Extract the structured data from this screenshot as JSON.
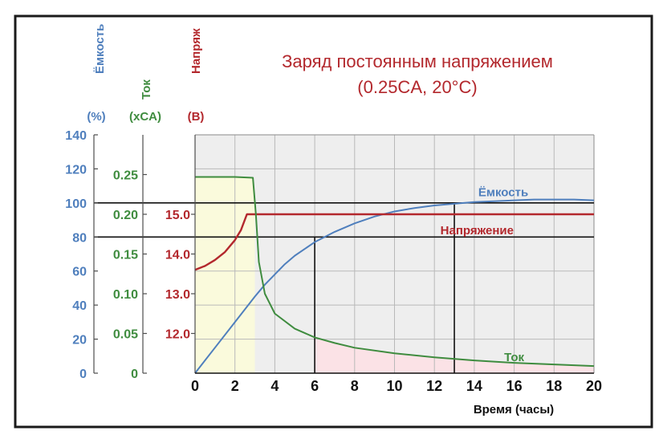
{
  "title": {
    "line1": "Заряд постоянным напряжением",
    "line2": "(0.25CA, 20°C)",
    "color": "#b3282d"
  },
  "axes_titles": {
    "capacity": {
      "name": "Ёмкость",
      "unit": "(%)",
      "color": "#4f7fbd"
    },
    "current": {
      "name": "Ток",
      "unit": "(xCA)",
      "color": "#3f8c3f"
    },
    "voltage": {
      "name": "Напряж",
      "unit": "(В)",
      "color": "#b3282d"
    }
  },
  "chart_data": {
    "type": "line",
    "xlabel": "Время (часы)",
    "xlim": [
      0,
      20
    ],
    "x_ticks": [
      "0",
      "2",
      "4",
      "6",
      "8",
      "10",
      "12",
      "14",
      "16",
      "18",
      "20"
    ],
    "y_axes": [
      {
        "name": "Ёмкость",
        "unit": "(%)",
        "lim": [
          0,
          140
        ],
        "ticks": [
          "0",
          "20",
          "40",
          "60",
          "80",
          "100",
          "120",
          "140"
        ]
      },
      {
        "name": "Ток",
        "unit": "(xCA)",
        "lim": [
          0,
          0.3
        ],
        "ticks": [
          "0",
          "0.05",
          "0.10",
          "0.15",
          "0.20",
          "0.25"
        ]
      },
      {
        "name": "Напряж",
        "unit": "(В)",
        "lim": [
          11,
          17
        ],
        "ticks": [
          "12.0",
          "13.0",
          "14.0",
          "15.0"
        ]
      }
    ],
    "grid": true,
    "series": [
      {
        "name": "Ёмкость",
        "color": "#4f7fbd",
        "axis": "capacity",
        "x": [
          0,
          1,
          2,
          3,
          3.5,
          4,
          4.5,
          5,
          6,
          7,
          8,
          9,
          10,
          11,
          12,
          13,
          14,
          15,
          16,
          17,
          18,
          19,
          20
        ],
        "y": [
          0,
          15,
          30,
          45,
          52,
          58,
          64,
          69,
          77,
          83,
          88,
          92,
          95,
          97,
          98.5,
          99.5,
          100.5,
          101,
          101.5,
          102,
          102,
          102,
          101.5
        ]
      },
      {
        "name": "Напряжение",
        "color": "#b3282d",
        "axis": "voltage",
        "x": [
          0,
          0.5,
          1,
          1.5,
          2,
          2.3,
          2.6,
          3,
          6,
          10,
          15,
          20
        ],
        "y": [
          13.6,
          13.7,
          13.85,
          14.05,
          14.35,
          14.6,
          15.0,
          15.0,
          15.0,
          15.0,
          15.0,
          15.0
        ]
      },
      {
        "name": "Ток",
        "color": "#3f8c3f",
        "axis": "current",
        "x": [
          0,
          1,
          2,
          2.9,
          3.05,
          3.2,
          3.5,
          4,
          5,
          6,
          7,
          8,
          10,
          12,
          14,
          16,
          18,
          20
        ],
        "y": [
          0.247,
          0.247,
          0.247,
          0.246,
          0.2,
          0.14,
          0.1,
          0.075,
          0.056,
          0.045,
          0.038,
          0.032,
          0.025,
          0.02,
          0.016,
          0.013,
          0.011,
          0.009
        ]
      }
    ],
    "reference_lines": [
      {
        "axis": "capacity",
        "value": 80
      },
      {
        "axis": "capacity",
        "value": 100
      },
      {
        "axis": "x",
        "value": 6
      },
      {
        "axis": "x",
        "value": 13
      }
    ],
    "shaded_regions": [
      {
        "x": [
          0,
          3
        ],
        "color": "#fafadc",
        "under": "Ток",
        "fill_to": "top-constant"
      },
      {
        "x": [
          6,
          20
        ],
        "color": "#fbe2e6",
        "under": "Ток"
      }
    ],
    "series_labels": [
      {
        "text": "Ёмкость",
        "x": 14.2,
        "capacity": 104,
        "color": "#4f7fbd"
      },
      {
        "text": "Напряжение",
        "x": 12.3,
        "capacity": 81.5,
        "color": "#b3282d"
      },
      {
        "text": "Ток",
        "x": 15.5,
        "capacity": 7,
        "color": "#3f8c3f"
      }
    ]
  }
}
